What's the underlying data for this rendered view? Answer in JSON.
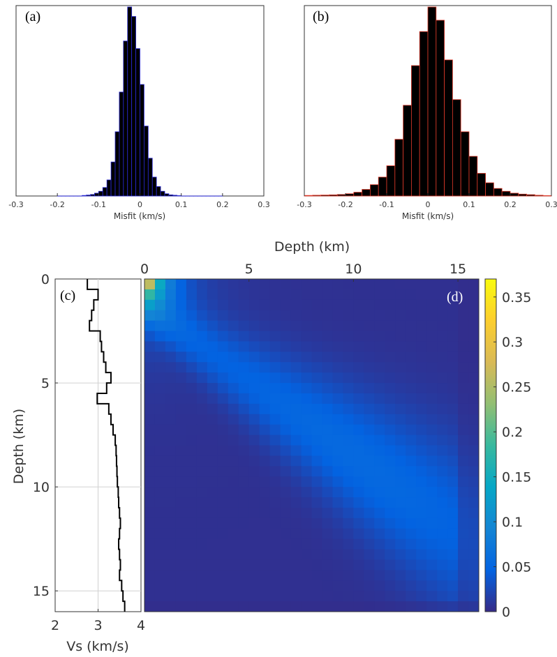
{
  "panels": {
    "a": {
      "label": "(a)"
    },
    "b": {
      "label": "(b)"
    },
    "c": {
      "label": "(c)"
    },
    "d": {
      "label": "(d)"
    }
  },
  "colors": {
    "hist_fill": "#000000",
    "hist_a_edge": "#2a2ad8",
    "hist_b_edge": "#e03a2a",
    "heatmap_colormap": "parula"
  },
  "chart_data": [
    {
      "id": "a",
      "type": "bar",
      "subtype": "histogram",
      "xlabel": "Misfit (km/s)",
      "ylabel": "",
      "xlim": [
        -0.3,
        0.3
      ],
      "xticks": [
        "-0.3",
        "-0.2",
        "-0.1",
        "0",
        "0.1",
        "0.2",
        "0.3"
      ],
      "yticks": [],
      "bin_edges": [
        -0.2,
        -0.19,
        -0.18,
        -0.17,
        -0.16,
        -0.15,
        -0.14,
        -0.13,
        -0.12,
        -0.11,
        -0.1,
        -0.09,
        -0.08,
        -0.07,
        -0.06,
        -0.05,
        -0.04,
        -0.03,
        -0.02,
        -0.01,
        0.0,
        0.01,
        0.02,
        0.03,
        0.04,
        0.05,
        0.06,
        0.07,
        0.08,
        0.09,
        0.1,
        0.11,
        0.12,
        0.13,
        0.14,
        0.15,
        0.16,
        0.17,
        0.18,
        0.19,
        0.2
      ],
      "counts": [
        0,
        0,
        0,
        0,
        0,
        0,
        0.003,
        0.005,
        0.008,
        0.015,
        0.025,
        0.045,
        0.085,
        0.18,
        0.34,
        0.55,
        0.82,
        1.0,
        0.95,
        0.78,
        0.59,
        0.37,
        0.2,
        0.1,
        0.05,
        0.025,
        0.012,
        0.006,
        0.004,
        0.002,
        0,
        0,
        0,
        0,
        0,
        0,
        0,
        0,
        0,
        0
      ]
    },
    {
      "id": "b",
      "type": "bar",
      "subtype": "histogram",
      "xlabel": "Misfit (km/s)",
      "ylabel": "",
      "xlim": [
        -0.3,
        0.3
      ],
      "xticks": [
        "-0.3",
        "-0.2",
        "-0.1",
        "0",
        "0.1",
        "0.2",
        "0.3"
      ],
      "yticks": [],
      "bin_edges": [
        -0.3,
        -0.28,
        -0.26,
        -0.24,
        -0.22,
        -0.2,
        -0.18,
        -0.16,
        -0.14,
        -0.12,
        -0.1,
        -0.08,
        -0.06,
        -0.04,
        -0.02,
        0.0,
        0.02,
        0.04,
        0.06,
        0.08,
        0.1,
        0.12,
        0.14,
        0.16,
        0.18,
        0.2,
        0.22,
        0.24,
        0.26,
        0.28,
        0.3
      ],
      "counts": [
        0.003,
        0.004,
        0.005,
        0.006,
        0.008,
        0.012,
        0.02,
        0.035,
        0.06,
        0.1,
        0.16,
        0.3,
        0.48,
        0.69,
        0.87,
        1.0,
        0.93,
        0.72,
        0.51,
        0.34,
        0.21,
        0.12,
        0.07,
        0.04,
        0.025,
        0.015,
        0.01,
        0.007,
        0.004,
        0.002
      ]
    },
    {
      "id": "c",
      "type": "line",
      "subtype": "step-profile",
      "xlabel": "Vs (km/s)",
      "ylabel": "Depth (km)",
      "xlim": [
        2,
        4
      ],
      "ylim": [
        0,
        16
      ],
      "xticks": [
        "2",
        "3",
        "4"
      ],
      "yticks": [
        "0",
        "5",
        "10",
        "15"
      ],
      "grid": true,
      "layer_tops_km": [
        0,
        0.5,
        1,
        1.5,
        2,
        2.5,
        3,
        3.5,
        4,
        4.5,
        5,
        5.5,
        6,
        6.5,
        7,
        7.5,
        8,
        8.5,
        9,
        9.5,
        10,
        10.5,
        11,
        11.5,
        12,
        12.5,
        13,
        13.5,
        14,
        14.5,
        15,
        15.5,
        16
      ],
      "vs_km_s": [
        2.75,
        3.0,
        2.9,
        2.85,
        2.8,
        3.05,
        3.08,
        3.13,
        3.18,
        3.3,
        3.2,
        2.98,
        3.25,
        3.3,
        3.35,
        3.4,
        3.42,
        3.43,
        3.44,
        3.45,
        3.47,
        3.48,
        3.5,
        3.52,
        3.5,
        3.48,
        3.5,
        3.52,
        3.5,
        3.55,
        3.58,
        3.62
      ]
    },
    {
      "id": "d",
      "type": "heatmap",
      "xlabel": "Depth (km)",
      "ylabel": "",
      "xlim": [
        0,
        16
      ],
      "ylim": [
        0,
        16
      ],
      "xticks": [
        "0",
        "5",
        "10",
        "15"
      ],
      "yticks": [],
      "colorbar": {
        "range": [
          0,
          0.37
        ],
        "ticks": [
          "0",
          "0.05",
          "0.1",
          "0.15",
          "0.2",
          "0.25",
          "0.3",
          "0.35"
        ]
      },
      "grid_size": [
        32,
        32
      ],
      "description_of_values": "sensitivity concentrated near 0 km (max ~0.37) decaying along a broad diagonal band toward ~9-12 km depth with values ~0.04-0.06; background ~0.005-0.01"
    }
  ]
}
